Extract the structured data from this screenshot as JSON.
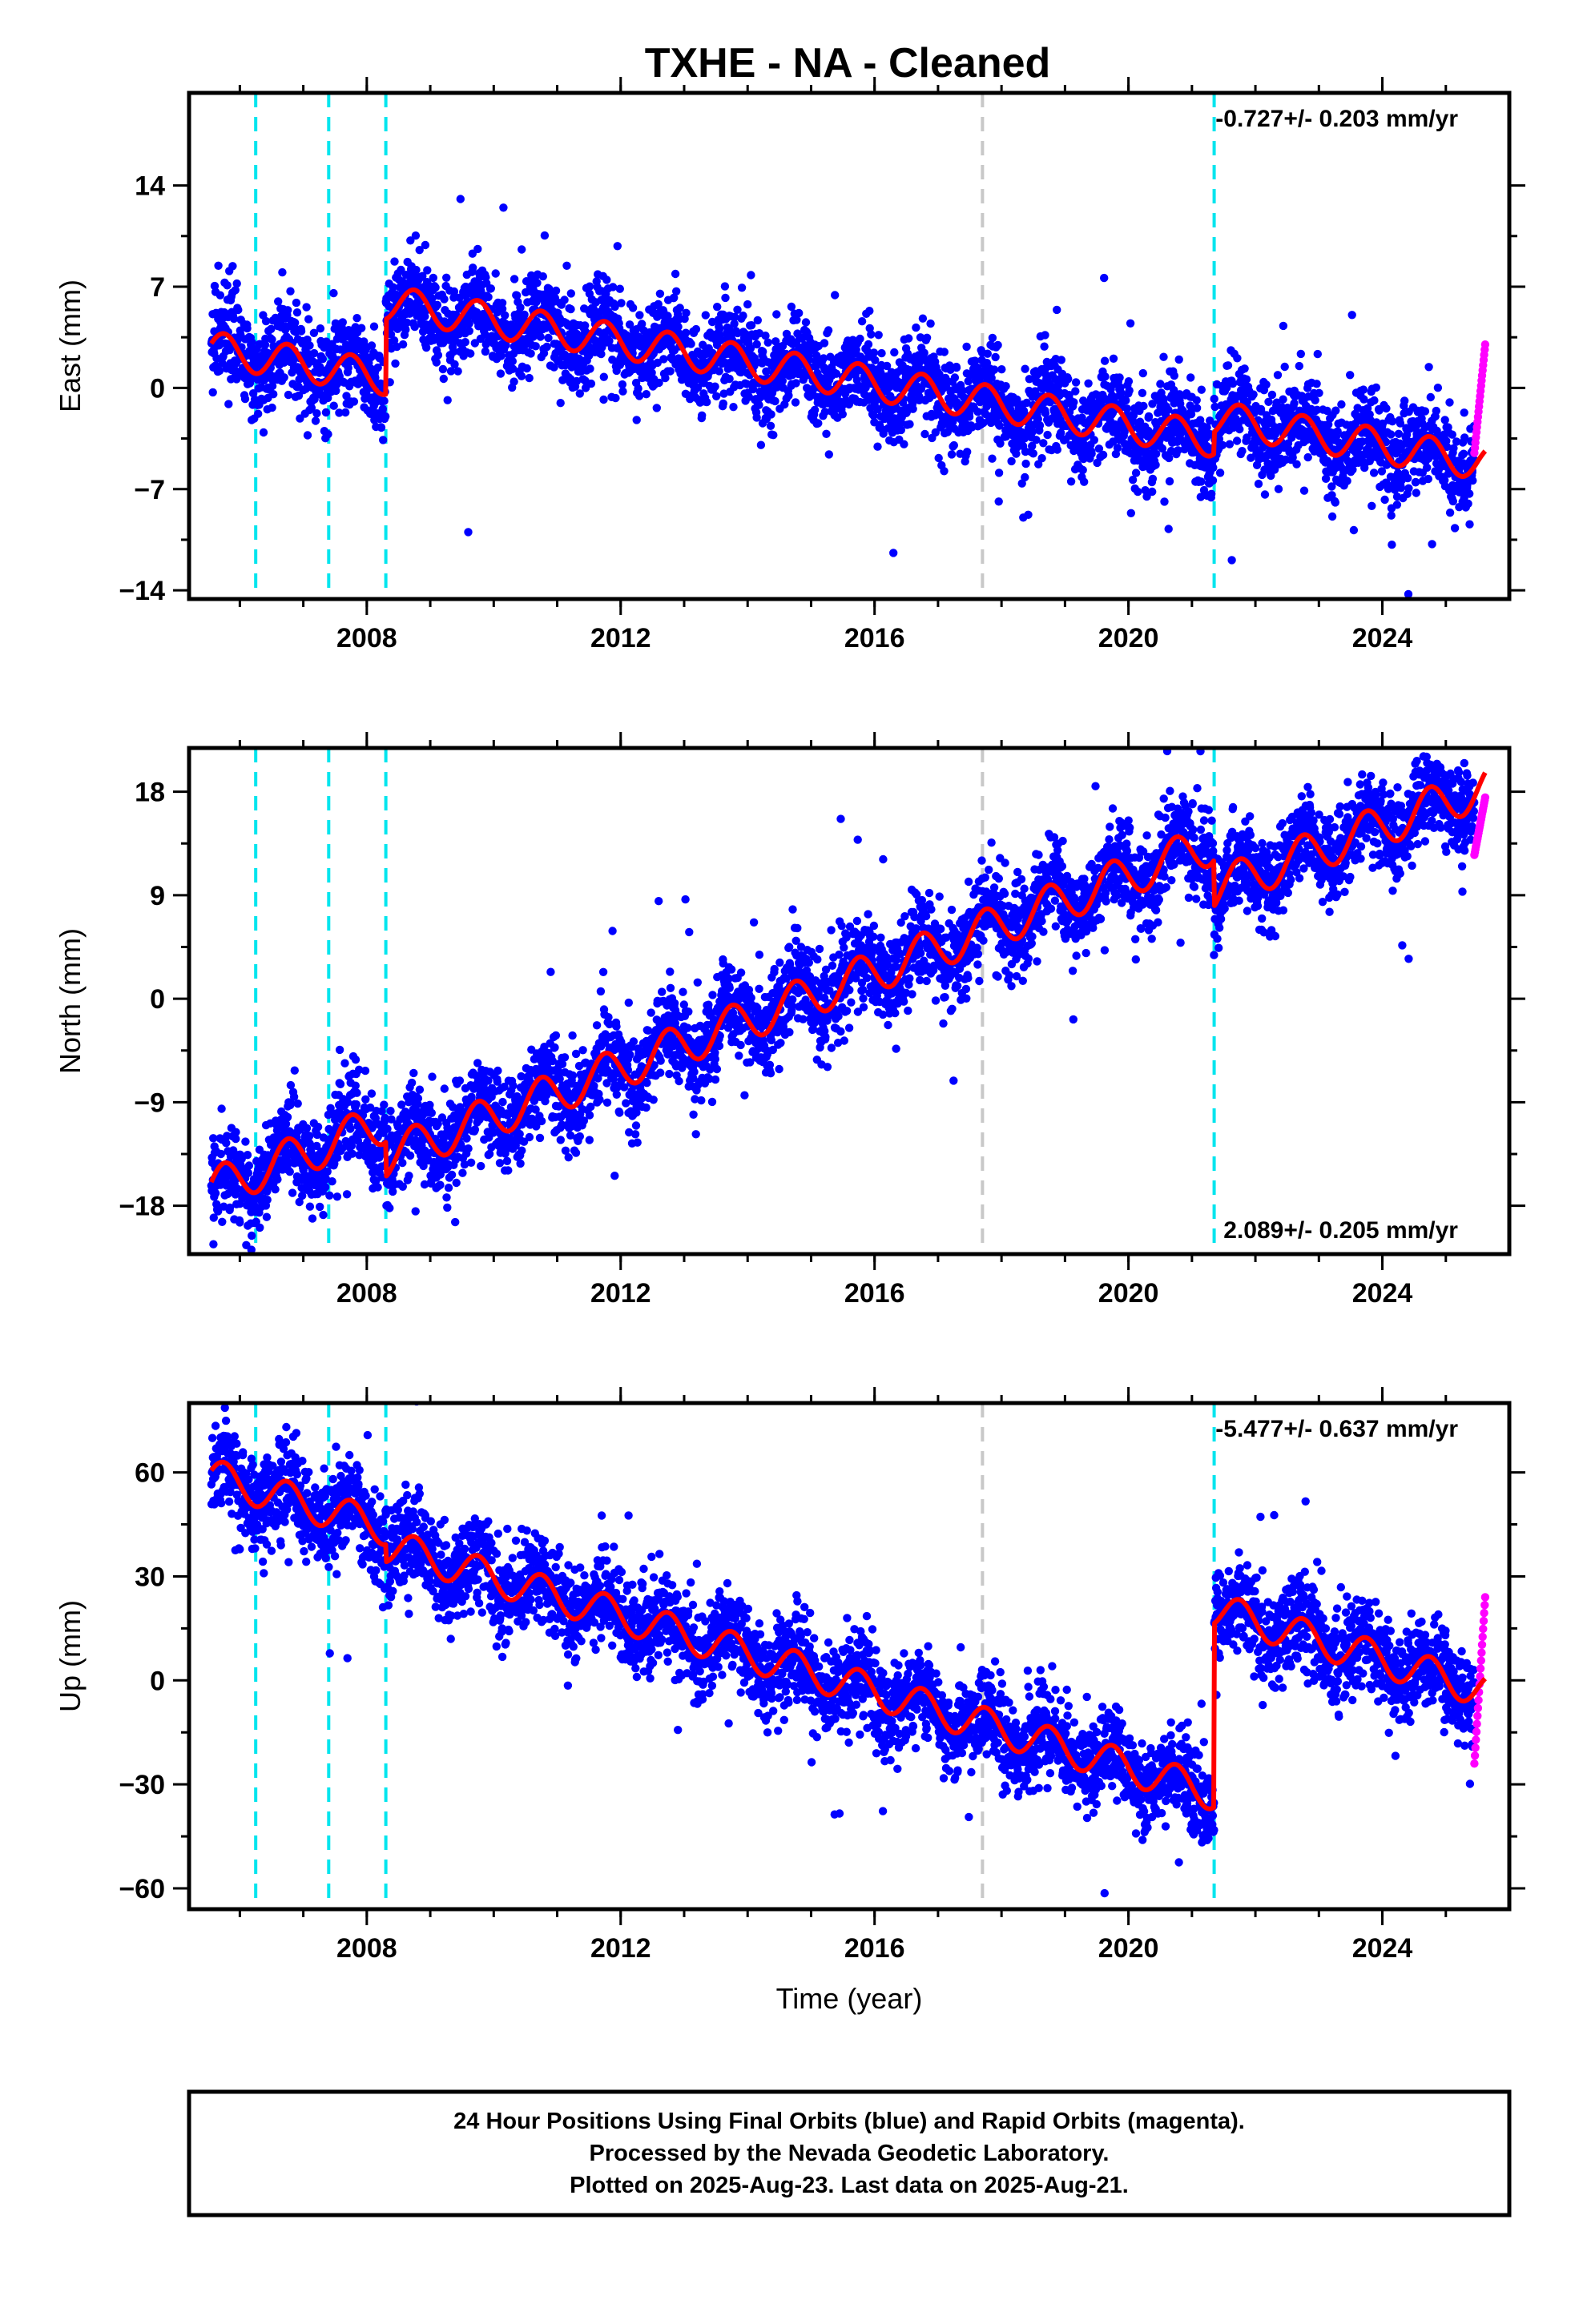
{
  "title": "TXHE  - NA - Cleaned",
  "colors": {
    "final_orbits": "#0000ff",
    "rapid_orbits": "#ff00ff",
    "model": "#ff0000",
    "equipment_change": "#00e5ee",
    "other_event": "#c8c8c8",
    "frame": "#000000"
  },
  "chart_data": [
    {
      "type": "scatter",
      "ylabel": "East (mm)",
      "rate": "-0.727+/- 0.203 mm/yr",
      "rate_position": "top-right",
      "xlim": [
        2005.2,
        2026.0
      ],
      "ylim": [
        -14.6,
        20.4
      ],
      "xticks": [
        2008,
        2012,
        2016,
        2020,
        2024
      ],
      "yticks": [
        -14,
        -7,
        0,
        7,
        14
      ],
      "model": {
        "start": 2.7,
        "trend": -0.727,
        "amplitude": 1.2,
        "steps": [
          {
            "year": 2008.3,
            "offset": 5.2
          },
          {
            "year": 2021.35,
            "offset": 1.5
          }
        ]
      },
      "rapid": {
        "start": 2025.45,
        "end": 2025.62,
        "min": -4.5,
        "max": 3.0
      },
      "events": [
        {
          "year": 2006.25,
          "kind": "equipment"
        },
        {
          "year": 2007.4,
          "kind": "equipment"
        },
        {
          "year": 2008.3,
          "kind": "equipment"
        },
        {
          "year": 2017.7,
          "kind": "other"
        },
        {
          "year": 2021.35,
          "kind": "equipment"
        }
      ]
    },
    {
      "type": "scatter",
      "ylabel": "North (mm)",
      "rate": "2.089+/- 0.205 mm/yr",
      "rate_position": "bottom-right",
      "xlim": [
        2005.2,
        2026.0
      ],
      "ylim": [
        -22.2,
        21.8
      ],
      "xticks": [
        2008,
        2012,
        2016,
        2020,
        2024
      ],
      "yticks": [
        -18,
        -9,
        0,
        9,
        18
      ],
      "model": {
        "start": -16.5,
        "trend": 2.089,
        "amplitude": 1.8,
        "steps": [
          {
            "year": 2008.3,
            "offset": -3.0
          },
          {
            "year": 2021.35,
            "offset": -4.0
          }
        ]
      },
      "rapid": {
        "start": 2025.45,
        "end": 2025.62,
        "min": 12.5,
        "max": 17.5
      },
      "events": [
        {
          "year": 2006.25,
          "kind": "equipment"
        },
        {
          "year": 2007.4,
          "kind": "equipment"
        },
        {
          "year": 2008.3,
          "kind": "equipment"
        },
        {
          "year": 2017.7,
          "kind": "other"
        },
        {
          "year": 2021.35,
          "kind": "equipment"
        }
      ]
    },
    {
      "type": "scatter",
      "ylabel": "Up (mm)",
      "xlabel": "Time (year)",
      "rate": "-5.477+/- 0.637 mm/yr",
      "rate_position": "top-right",
      "xlim": [
        2005.2,
        2026.0
      ],
      "ylim": [
        -66,
        80
      ],
      "xticks": [
        2008,
        2012,
        2016,
        2020,
        2024
      ],
      "yticks": [
        -60,
        -30,
        0,
        30,
        60
      ],
      "model": {
        "start": 59,
        "trend": -5.477,
        "amplitude": 5,
        "steps": [
          {
            "year": 2008.3,
            "offset": -5.0
          },
          {
            "year": 2021.35,
            "offset": 53.0
          }
        ]
      },
      "rapid": {
        "start": 2025.45,
        "end": 2025.62,
        "min": -24,
        "max": 24
      },
      "events": [
        {
          "year": 2006.25,
          "kind": "equipment"
        },
        {
          "year": 2007.4,
          "kind": "equipment"
        },
        {
          "year": 2008.3,
          "kind": "equipment"
        },
        {
          "year": 2017.7,
          "kind": "other"
        },
        {
          "year": 2021.35,
          "kind": "equipment"
        }
      ]
    }
  ],
  "footer": {
    "line1": "24 Hour Positions Using Final Orbits (blue) and Rapid Orbits (magenta).",
    "line2": "Processed by the Nevada Geodetic Laboratory.",
    "line3": "Plotted on 2025-Aug-23. Last data on 2025-Aug-21."
  }
}
